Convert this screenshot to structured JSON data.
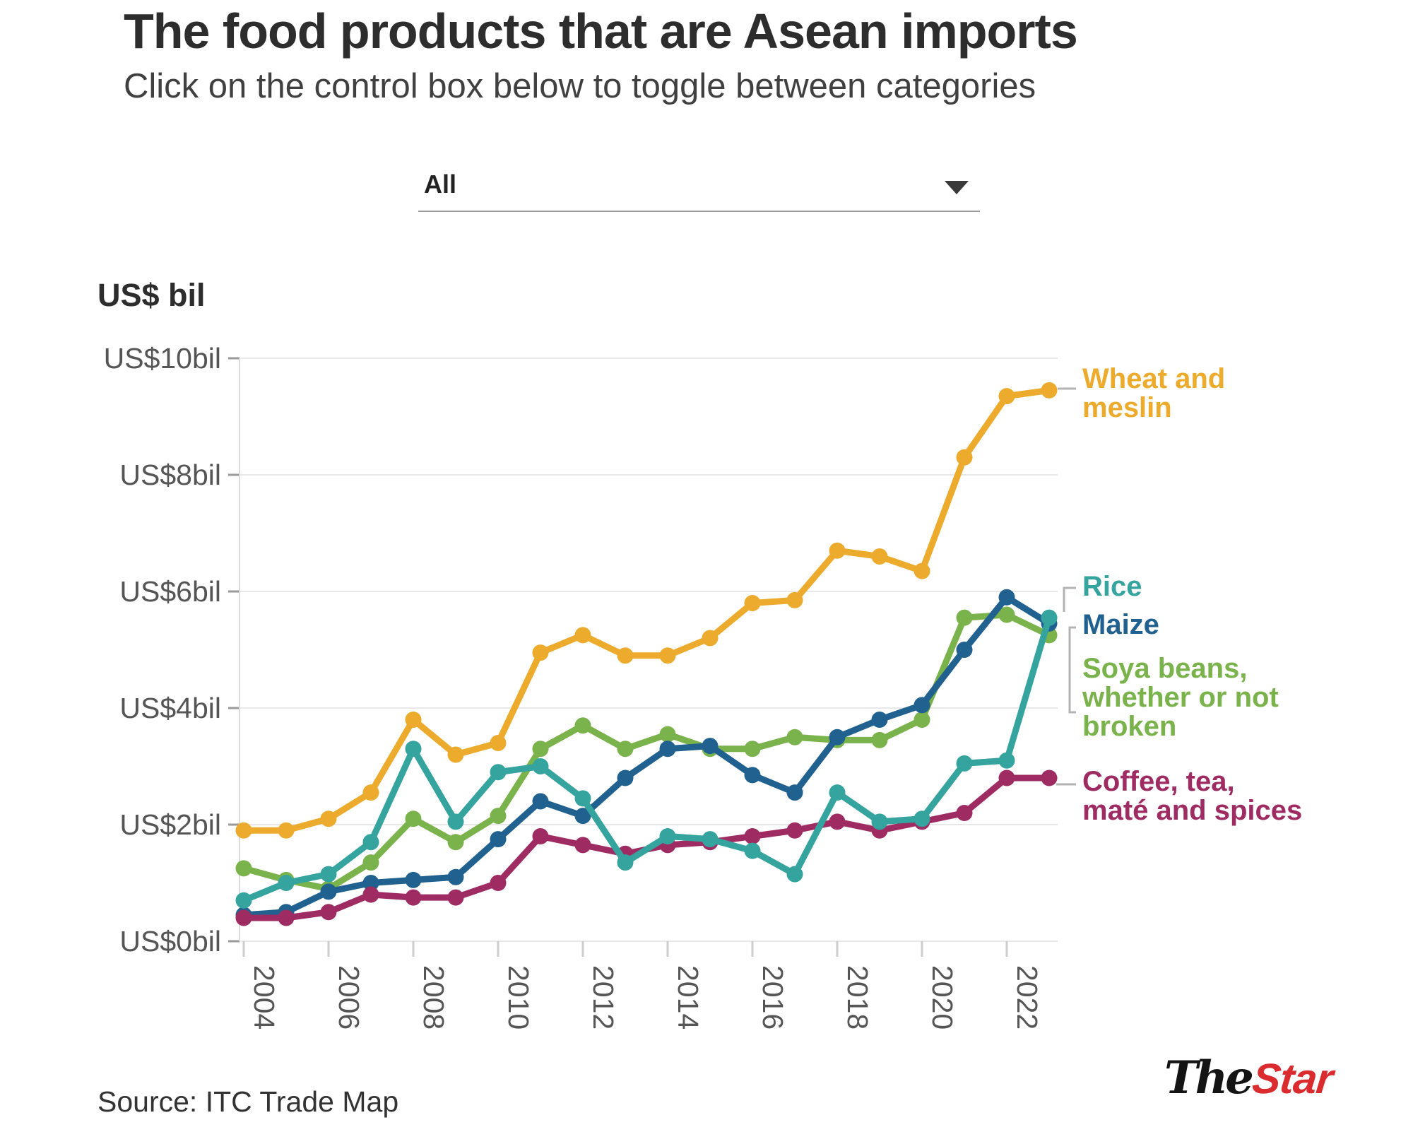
{
  "title": "The food products that are Asean imports",
  "subtitle": "Click on the control box below to toggle between categories",
  "control": {
    "value": "All",
    "icon": "triangle-down"
  },
  "axis_title": "US$ bil",
  "source": "Source: ITC Trade Map",
  "logo": {
    "the": "The",
    "star": "Star",
    "star_color": "#da2b2f"
  },
  "chart_data": {
    "type": "line",
    "title": "The food products that are Asean imports",
    "ylabel": "US$ bil",
    "ylim": [
      0,
      10
    ],
    "grid": true,
    "legend_position": "right-of-line-ends",
    "x": [
      2004,
      2005,
      2006,
      2007,
      2008,
      2009,
      2010,
      2011,
      2012,
      2013,
      2014,
      2015,
      2016,
      2017,
      2018,
      2019,
      2020,
      2021,
      2022,
      2023
    ],
    "x_ticks": [
      2004,
      2006,
      2008,
      2010,
      2012,
      2014,
      2016,
      2018,
      2020,
      2022
    ],
    "y_ticks": [
      {
        "value": 0,
        "label": "US$0bil"
      },
      {
        "value": 2,
        "label": "US$2bil"
      },
      {
        "value": 4,
        "label": "US$4bil"
      },
      {
        "value": 6,
        "label": "US$6bil"
      },
      {
        "value": 8,
        "label": "US$8bil"
      },
      {
        "value": 10,
        "label": "US$10bil"
      }
    ],
    "series": [
      {
        "name": "Wheat and meslin",
        "label_lines": [
          "Wheat and",
          "meslin"
        ],
        "color": "#ecab2c",
        "values": [
          1.9,
          1.9,
          2.1,
          2.55,
          3.8,
          3.2,
          3.4,
          4.95,
          5.25,
          4.9,
          4.9,
          5.2,
          5.8,
          5.85,
          6.7,
          6.6,
          6.35,
          8.3,
          9.35,
          9.45
        ]
      },
      {
        "name": "Rice",
        "label_lines": [
          "Rice"
        ],
        "color": "#35a49e",
        "values": [
          0.7,
          1.0,
          1.15,
          1.7,
          3.3,
          2.05,
          2.9,
          3.0,
          2.45,
          1.35,
          1.8,
          1.75,
          1.55,
          1.15,
          2.55,
          2.05,
          2.1,
          3.05,
          3.1,
          5.55
        ]
      },
      {
        "name": "Maize",
        "label_lines": [
          "Maize"
        ],
        "color": "#20618f",
        "values": [
          0.45,
          0.5,
          0.85,
          1.0,
          1.05,
          1.1,
          1.75,
          2.4,
          2.15,
          2.8,
          3.3,
          3.35,
          2.85,
          2.55,
          3.5,
          3.8,
          4.05,
          5.0,
          5.9,
          5.45
        ]
      },
      {
        "name": "Soya beans, whether or not broken",
        "label_lines": [
          "Soya beans,",
          "whether or not",
          "broken"
        ],
        "color": "#7ab24b",
        "values": [
          1.25,
          1.05,
          0.9,
          1.35,
          2.1,
          1.7,
          2.15,
          3.3,
          3.7,
          3.3,
          3.55,
          3.3,
          3.3,
          3.5,
          3.45,
          3.45,
          3.8,
          5.55,
          5.6,
          5.25
        ]
      },
      {
        "name": "Coffee, tea, maté and spices",
        "label_lines": [
          "Coffee, tea,",
          "maté and spices"
        ],
        "color": "#9e2c63",
        "values": [
          0.4,
          0.4,
          0.5,
          0.8,
          0.75,
          0.75,
          1.0,
          1.8,
          1.65,
          1.5,
          1.65,
          1.7,
          1.8,
          1.9,
          2.05,
          1.9,
          2.05,
          2.2,
          2.8,
          2.8
        ]
      }
    ]
  }
}
